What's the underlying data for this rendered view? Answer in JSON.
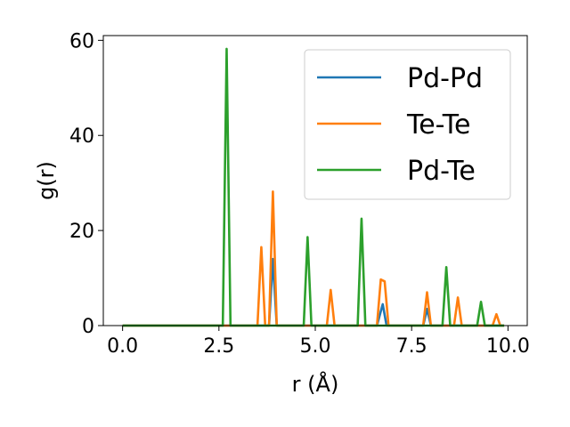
{
  "chart_data": {
    "type": "line",
    "xlabel": "r (Å)",
    "ylabel": "g(r)",
    "xlim": [
      -0.5,
      10.5
    ],
    "ylim": [
      0,
      61
    ],
    "xticks": [
      0.0,
      2.5,
      5.0,
      7.5,
      10.0
    ],
    "xtick_labels": [
      "0.0",
      "2.5",
      "5.0",
      "7.5",
      "10.0"
    ],
    "yticks": [
      0,
      20,
      40,
      60
    ],
    "ytick_labels": [
      "0",
      "20",
      "40",
      "60"
    ],
    "grid": false,
    "legend_position": "top-right",
    "series": [
      {
        "name": "Pd-Pd",
        "color": "#1f77b4",
        "points": [
          [
            0.0,
            0
          ],
          [
            3.8,
            0
          ],
          [
            3.9,
            14.0
          ],
          [
            4.0,
            0
          ],
          [
            6.6,
            0
          ],
          [
            6.75,
            4.5
          ],
          [
            6.85,
            0
          ],
          [
            7.8,
            0
          ],
          [
            7.9,
            3.5
          ],
          [
            8.0,
            0
          ],
          [
            9.9,
            0
          ]
        ]
      },
      {
        "name": "Te-Te",
        "color": "#ff7f0e",
        "points": [
          [
            0.0,
            0
          ],
          [
            3.5,
            0
          ],
          [
            3.6,
            16.5
          ],
          [
            3.7,
            0
          ],
          [
            3.8,
            0
          ],
          [
            3.9,
            28.2
          ],
          [
            4.0,
            0
          ],
          [
            5.3,
            0
          ],
          [
            5.4,
            7.5
          ],
          [
            5.5,
            0
          ],
          [
            6.6,
            0
          ],
          [
            6.7,
            9.7
          ],
          [
            6.8,
            9.3
          ],
          [
            6.9,
            0
          ],
          [
            7.8,
            0
          ],
          [
            7.9,
            7.0
          ],
          [
            8.0,
            0
          ],
          [
            8.6,
            0
          ],
          [
            8.7,
            5.9
          ],
          [
            8.8,
            0
          ],
          [
            9.6,
            0
          ],
          [
            9.7,
            2.4
          ],
          [
            9.8,
            0
          ],
          [
            9.9,
            0
          ]
        ]
      },
      {
        "name": "Pd-Te",
        "color": "#2ca02c",
        "points": [
          [
            0.0,
            0
          ],
          [
            2.6,
            0
          ],
          [
            2.7,
            58.2
          ],
          [
            2.8,
            0
          ],
          [
            4.7,
            0
          ],
          [
            4.8,
            18.6
          ],
          [
            4.9,
            0
          ],
          [
            6.1,
            0
          ],
          [
            6.2,
            22.5
          ],
          [
            6.3,
            0
          ],
          [
            8.3,
            0
          ],
          [
            8.4,
            12.3
          ],
          [
            8.5,
            0
          ],
          [
            9.2,
            0
          ],
          [
            9.3,
            5.0
          ],
          [
            9.4,
            0
          ],
          [
            9.9,
            0
          ]
        ]
      }
    ]
  }
}
